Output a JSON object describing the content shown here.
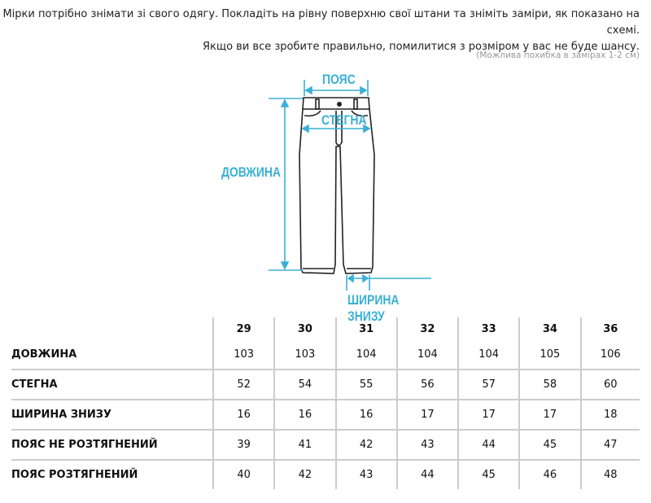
{
  "intro": {
    "line1": "Мірки потрібно знімати зі свого одягу. Покладіть на рівну поверхню свої штани та зніміть заміри, як показано на схемі.",
    "line2": "Якщо ви все зробите правильно, помилитися з розміром у вас не буде шансу.",
    "note": "(Можлива похибка в замірах 1-2 см)"
  },
  "diagram": {
    "waist": "ПОЯС",
    "hips": "СТЕГНА",
    "length": "ДОВЖИНА",
    "bottom": "ШИРИНА ЗНИЗУ",
    "accent": "#3ab0d6"
  },
  "table": {
    "sizes": [
      "29",
      "30",
      "31",
      "32",
      "33",
      "34",
      "36"
    ],
    "rows": [
      {
        "name": "ДОВЖИНА",
        "values": [
          "103",
          "103",
          "104",
          "104",
          "104",
          "105",
          "106"
        ]
      },
      {
        "name": "СТЕГНА",
        "values": [
          "52",
          "54",
          "55",
          "56",
          "57",
          "58",
          "60"
        ]
      },
      {
        "name": "ШИРИНА ЗНИЗУ",
        "values": [
          "16",
          "16",
          "16",
          "17",
          "17",
          "17",
          "18"
        ]
      },
      {
        "name": "ПОЯС НЕ РОЗТЯГНЕНИЙ",
        "values": [
          "39",
          "41",
          "42",
          "43",
          "44",
          "45",
          "47"
        ]
      },
      {
        "name": "ПОЯС РОЗТЯГНЕНИЙ",
        "values": [
          "40",
          "42",
          "43",
          "44",
          "45",
          "46",
          "48"
        ]
      }
    ]
  }
}
